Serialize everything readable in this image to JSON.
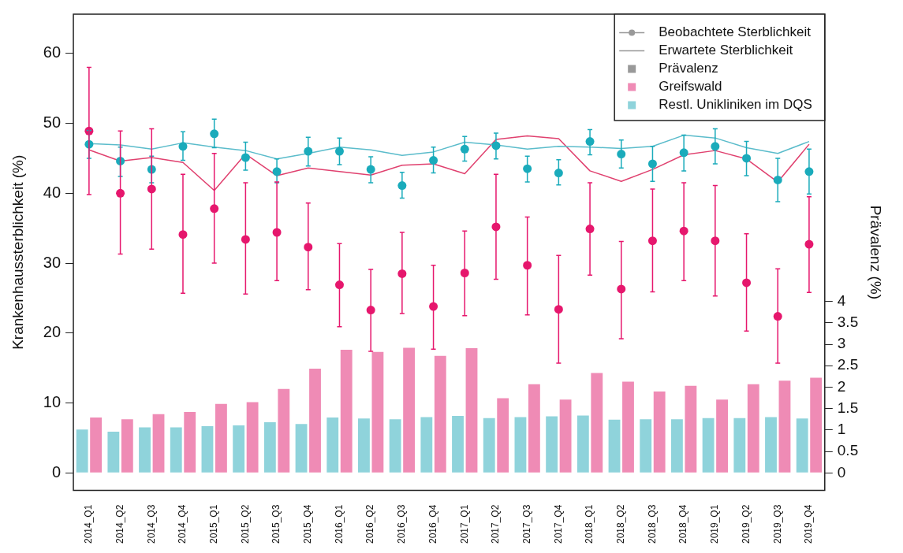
{
  "chart_data": {
    "type": "bar",
    "categories": [
      "2014_Q1",
      "2014_Q2",
      "2014_Q3",
      "2014_Q4",
      "2015_Q1",
      "2015_Q2",
      "2015_Q3",
      "2015_Q4",
      "2016_Q1",
      "2016_Q2",
      "2016_Q3",
      "2016_Q4",
      "2017_Q1",
      "2017_Q2",
      "2017_Q3",
      "2017_Q4",
      "2018_Q1",
      "2018_Q2",
      "2018_Q3",
      "2018_Q4",
      "2019_Q1",
      "2019_Q2",
      "2019_Q3",
      "2019_Q4"
    ],
    "ylabel": "Krankenhaussterblichkeit (%)",
    "y2label": "Prävalenz (%)",
    "ylim": [
      -2.5,
      65.6
    ],
    "yticks": [
      0,
      10,
      20,
      30,
      40,
      50,
      60
    ],
    "y2lim": [
      -0.41,
      10.7
    ],
    "y2ticks": [
      0,
      0.5,
      1,
      1.5,
      2,
      2.5,
      3,
      3.5,
      4
    ],
    "legend": "top right",
    "series": [
      {
        "name": "Beobachtete Sterblichkeit",
        "type": "line",
        "marker": "circle",
        "color": "#999999",
        "values": [
          null,
          null,
          null,
          null,
          null,
          null,
          null,
          null,
          null,
          null,
          null,
          null,
          null,
          null,
          null,
          null,
          null,
          null,
          null,
          null,
          null,
          null,
          null,
          null
        ]
      },
      {
        "name": "Erwartete Sterblichkeit",
        "type": "line",
        "marker": "none",
        "color": "#999999",
        "values": [
          null,
          null,
          null,
          null,
          null,
          null,
          null,
          null,
          null,
          null,
          null,
          null,
          null,
          null,
          null,
          null,
          null,
          null,
          null,
          null,
          null,
          null,
          null,
          null
        ]
      },
      {
        "name": "Prävalenz",
        "color": "#999999",
        "values": [
          null,
          null,
          null,
          null,
          null,
          null,
          null,
          null,
          null,
          null,
          null,
          null,
          null,
          null,
          null,
          null,
          null,
          null,
          null,
          null,
          null,
          null,
          null,
          null
        ]
      },
      {
        "name": "Greifswald",
        "axis": "y2",
        "color": "#ef8bb5",
        "values": [
          1.29,
          1.25,
          1.37,
          1.42,
          1.61,
          1.65,
          1.96,
          2.43,
          2.87,
          2.82,
          2.92,
          2.73,
          2.91,
          1.74,
          2.07,
          1.71,
          2.33,
          2.13,
          1.9,
          2.03,
          1.71,
          2.07,
          2.15,
          2.22
        ]
      },
      {
        "name": "Restl. Unikliniken im DQS",
        "axis": "y2",
        "color": "#8fd3db",
        "values": [
          1.01,
          0.96,
          1.06,
          1.06,
          1.09,
          1.11,
          1.18,
          1.14,
          1.29,
          1.27,
          1.25,
          1.3,
          1.33,
          1.28,
          1.3,
          1.32,
          1.34,
          1.24,
          1.25,
          1.25,
          1.28,
          1.28,
          1.3,
          1.27
        ]
      },
      {
        "type": "line",
        "marker": "none",
        "color": "#5bbccb",
        "values": [
          47.1,
          46.9,
          46.3,
          47.2,
          46.6,
          46.1,
          44.9,
          45.7,
          46.6,
          46.2,
          45.4,
          45.9,
          47.3,
          46.9,
          46.3,
          46.7,
          46.6,
          46.4,
          46.7,
          48.3,
          47.9,
          46.5,
          45.7,
          47.4
        ]
      },
      {
        "type": "line",
        "marker": "none",
        "color": "#e0416f",
        "values": [
          46.2,
          44.6,
          45.1,
          44.4,
          40.4,
          45.6,
          42.5,
          43.6,
          43.1,
          42.6,
          44.0,
          44.2,
          42.8,
          47.7,
          48.2,
          47.8,
          43.2,
          41.7,
          43.4,
          45.5,
          46.1,
          44.9,
          41.6,
          47.0
        ]
      },
      {
        "type": "scatter",
        "marker": "circle",
        "color": "#1aabbb",
        "values": [
          47.0,
          44.6,
          43.4,
          46.7,
          48.5,
          45.1,
          43.1,
          46.0,
          46.0,
          43.4,
          41.1,
          44.7,
          46.3,
          46.8,
          43.5,
          42.9,
          47.4,
          45.6,
          44.2,
          45.8,
          46.7,
          45.0,
          41.9,
          43.1
        ],
        "errors": [
          [
            45.0,
            49.0
          ],
          [
            42.4,
            46.6
          ],
          [
            41.5,
            45.3
          ],
          [
            44.7,
            48.8
          ],
          [
            46.5,
            50.6
          ],
          [
            43.3,
            47.3
          ],
          [
            41.5,
            44.9
          ],
          [
            43.9,
            48.0
          ],
          [
            44.1,
            47.9
          ],
          [
            41.5,
            45.2
          ],
          [
            39.3,
            43.0
          ],
          [
            42.9,
            46.6
          ],
          [
            44.6,
            48.1
          ],
          [
            44.9,
            48.6
          ],
          [
            41.6,
            45.3
          ],
          [
            41.2,
            44.8
          ],
          [
            45.5,
            49.1
          ],
          [
            43.6,
            47.6
          ],
          [
            41.7,
            46.7
          ],
          [
            43.2,
            48.3
          ],
          [
            44.2,
            49.2
          ],
          [
            42.5,
            47.4
          ],
          [
            38.8,
            45.0
          ],
          [
            39.9,
            46.3
          ]
        ]
      },
      {
        "type": "scatter",
        "marker": "circle",
        "color": "#e6176d",
        "values": [
          48.9,
          40.0,
          40.6,
          34.1,
          37.8,
          33.4,
          34.4,
          32.3,
          26.9,
          23.3,
          28.5,
          23.8,
          28.6,
          35.2,
          29.7,
          23.4,
          34.9,
          26.3,
          33.2,
          34.6,
          33.2,
          27.2,
          22.4,
          32.7
        ],
        "errors": [
          [
            39.8,
            58.0
          ],
          [
            31.3,
            48.9
          ],
          [
            32.0,
            49.2
          ],
          [
            25.7,
            42.7
          ],
          [
            30.0,
            45.7
          ],
          [
            25.6,
            41.5
          ],
          [
            27.5,
            41.6
          ],
          [
            26.2,
            38.6
          ],
          [
            20.9,
            32.8
          ],
          [
            17.4,
            29.1
          ],
          [
            22.8,
            34.4
          ],
          [
            17.7,
            29.7
          ],
          [
            22.5,
            34.6
          ],
          [
            27.7,
            42.7
          ],
          [
            22.6,
            36.6
          ],
          [
            15.7,
            31.1
          ],
          [
            28.3,
            41.5
          ],
          [
            19.2,
            33.1
          ],
          [
            25.9,
            40.6
          ],
          [
            27.5,
            41.5
          ],
          [
            25.3,
            41.1
          ],
          [
            20.3,
            34.2
          ],
          [
            15.7,
            29.2
          ],
          [
            25.8,
            39.5
          ]
        ]
      }
    ]
  }
}
